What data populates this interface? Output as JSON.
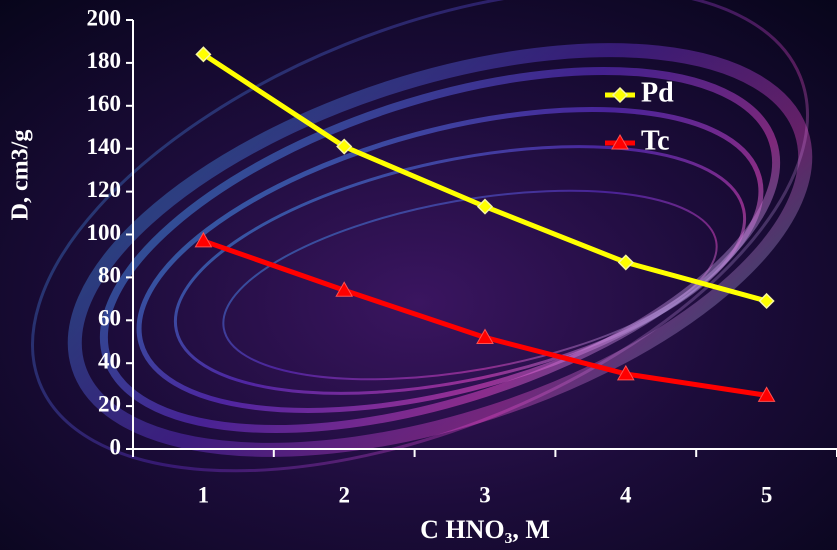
{
  "chart_data": {
    "type": "line",
    "x_label": "C HNO₃, M",
    "y_label": "D, cm3/g",
    "categories": [
      "1",
      "2",
      "3",
      "4",
      "5"
    ],
    "series": [
      {
        "name": "Pd",
        "color": "#ffff00",
        "marker": "diamond",
        "values": [
          184,
          141,
          113,
          87,
          69
        ]
      },
      {
        "name": "Tc",
        "color": "#ff0000",
        "marker": "triangle",
        "values": [
          97,
          74,
          52,
          35,
          25
        ]
      }
    ],
    "ylim": [
      0,
      200
    ],
    "yticks": [
      0,
      20,
      40,
      60,
      80,
      100,
      120,
      140,
      160,
      180,
      200
    ],
    "grid": false,
    "legend": "upper right"
  }
}
